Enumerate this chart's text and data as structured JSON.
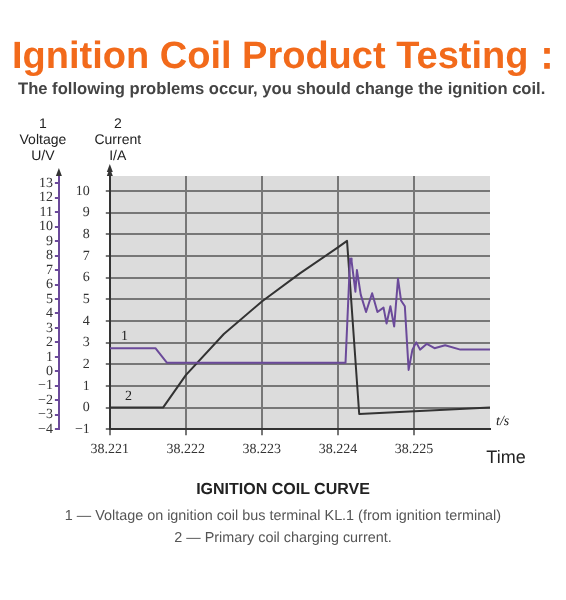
{
  "chart_data": {
    "type": "line",
    "title": "Ignition Coil Product Testing：",
    "subtitle": "The following problems occur, you should change the ignition coil.",
    "xlabel": "t/s",
    "ylabel": "1\nVoltage\nU/V",
    "y2label": "2\nCurrent\nI/A",
    "annotations": [
      "Time",
      "IGNITION COIL CURVE",
      "1 — Voltage on ignition coil bus terminal KL.1 (from ignition terminal)",
      "2 — Primary coil charging current."
    ],
    "xlim": [
      38.221,
      38.226
    ],
    "xticks": [
      38.221,
      38.222,
      38.223,
      38.224,
      38.225
    ],
    "ylim": [
      -4,
      13.5
    ],
    "yticks": [
      -4,
      -3,
      -2,
      -1,
      0,
      1,
      2,
      3,
      4,
      5,
      6,
      7,
      8,
      9,
      10,
      11,
      12,
      13
    ],
    "y2lim": [
      -1,
      10.7
    ],
    "y2ticks": [
      -1,
      0,
      1,
      2,
      3,
      4,
      5,
      6,
      7,
      8,
      9,
      10
    ],
    "grid": true,
    "legend": false,
    "marker": "none",
    "line_style": "solid",
    "series": [
      {
        "name": "1",
        "color": "#6b4a9a",
        "axis": "y",
        "x": [
          38.221,
          38.2216,
          38.22175,
          38.2241,
          38.22416,
          38.22418,
          38.22423,
          38.22425,
          38.2243,
          38.22437,
          38.22445,
          38.22452,
          38.2246,
          38.22464,
          38.22469,
          38.22474,
          38.22479,
          38.22483,
          38.22488,
          38.22493,
          38.22498,
          38.22503,
          38.22508,
          38.22517,
          38.22527,
          38.22541,
          38.22561,
          38.226
        ],
        "values": [
          1.6,
          1.6,
          0.6,
          0.6,
          7.8,
          7.6,
          5.5,
          7.0,
          5.3,
          4.1,
          5.4,
          4.1,
          4.4,
          3.3,
          4.5,
          3.1,
          6.4,
          4.9,
          4.5,
          0.1,
          1.5,
          2.0,
          1.5,
          1.9,
          1.6,
          1.8,
          1.5,
          1.5
        ]
      },
      {
        "name": "2",
        "color": "#333333",
        "axis": "y2",
        "x": [
          38.221,
          38.2217,
          38.222,
          38.2225,
          38.223,
          38.2235,
          38.224,
          38.22412,
          38.22428,
          38.226
        ],
        "values": [
          0,
          0,
          1.5,
          3.4,
          4.9,
          6.2,
          7.4,
          7.7,
          -0.3,
          0
        ]
      }
    ]
  }
}
